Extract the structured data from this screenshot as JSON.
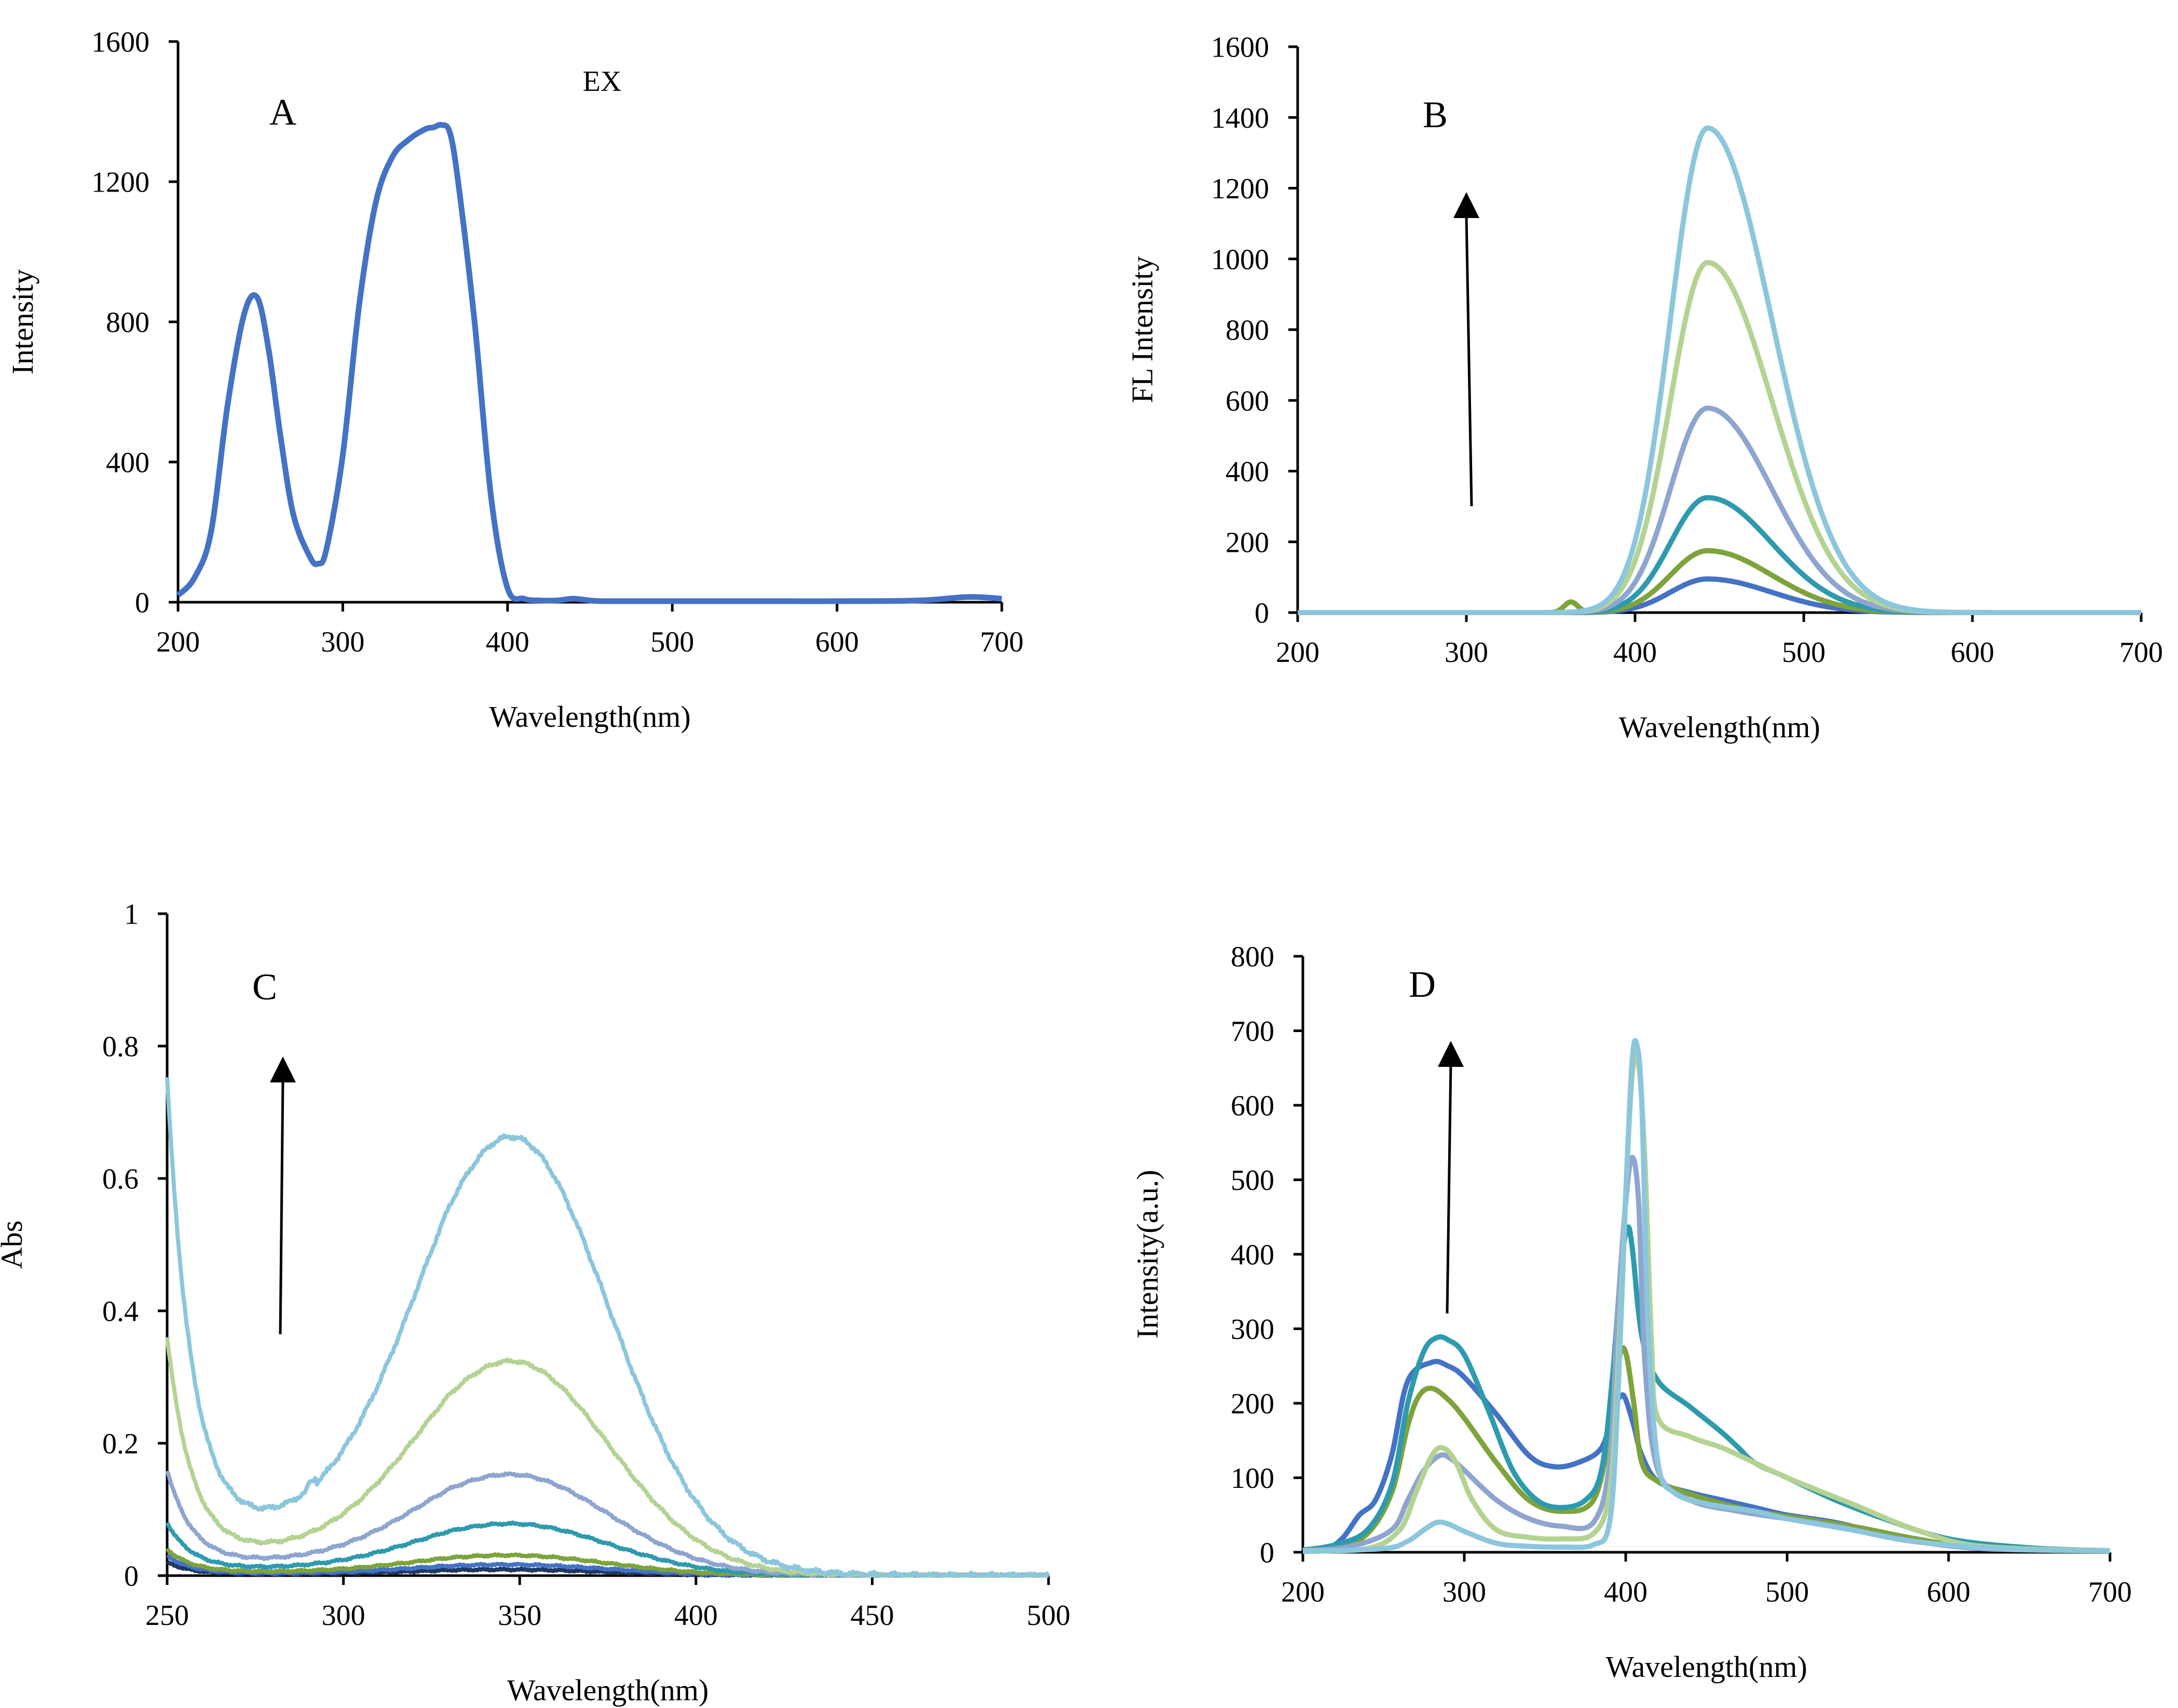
{
  "chart_data": [
    {
      "panel": "A",
      "type": "line",
      "panel_label": "A",
      "annotation": "EX",
      "xlabel": "Wavelength(nm)",
      "ylabel": "Intensity",
      "xlim": [
        200,
        700
      ],
      "ylim": [
        0,
        1600
      ],
      "xticks": [
        200,
        300,
        400,
        500,
        600,
        700
      ],
      "yticks": [
        0,
        400,
        800,
        1200,
        1600
      ],
      "colors": [
        "#4472C4"
      ],
      "series": [
        {
          "x": [
            200,
            210,
            220,
            230,
            240,
            248,
            255,
            262,
            270,
            280,
            285,
            290,
            300,
            310,
            320,
            330,
            340,
            350,
            355,
            360,
            365,
            370,
            380,
            390,
            400,
            410,
            420,
            430,
            440,
            450,
            460,
            500,
            550,
            600,
            650,
            680,
            700
          ],
          "y": [
            20,
            70,
            200,
            560,
            820,
            870,
            720,
            480,
            250,
            130,
            110,
            150,
            420,
            850,
            1140,
            1270,
            1320,
            1350,
            1355,
            1362,
            1340,
            1200,
            800,
            300,
            40,
            10,
            5,
            5,
            10,
            5,
            3,
            3,
            3,
            3,
            5,
            15,
            10
          ]
        }
      ]
    },
    {
      "panel": "B",
      "type": "line",
      "panel_label": "B",
      "xlabel": "Wavelength(nm)",
      "ylabel": "FL Intensity",
      "xlim": [
        200,
        700
      ],
      "ylim": [
        0,
        1600
      ],
      "xticks": [
        200,
        300,
        400,
        500,
        600,
        700
      ],
      "yticks": [
        0,
        200,
        400,
        600,
        800,
        1000,
        1200,
        1400,
        1600
      ],
      "arrow": "up",
      "colors": [
        "#4472C4",
        "#7DA33A",
        "#2E9AAE",
        "#8EA5CF",
        "#B4D393",
        "#8CC6DC"
      ],
      "peak_center": 443,
      "peaks": [
        95,
        175,
        325,
        578,
        990,
        1370
      ],
      "small_peak": {
        "x": 362,
        "y": 30
      }
    },
    {
      "panel": "C",
      "type": "line",
      "panel_label": "C",
      "xlabel": "Wavelength(nm)",
      "ylabel": "Abs",
      "xlim": [
        250,
        500
      ],
      "ylim": [
        0,
        1
      ],
      "xticks": [
        250,
        300,
        350,
        400,
        450,
        500
      ],
      "yticks": [
        0,
        0.2,
        0.4,
        0.6,
        0.8,
        1
      ],
      "ytick_labels": [
        "0",
        "0.2",
        "0.4",
        "0.6",
        "0.8",
        "1"
      ],
      "arrow": "up",
      "colors": [
        "#1F3864",
        "#4472C4",
        "#7DA33A",
        "#2E9AAE",
        "#8EA5CF",
        "#B4D393",
        "#8CC6DC"
      ],
      "peak_center": 349,
      "peaks": [
        0.008,
        0.015,
        0.028,
        0.073,
        0.142,
        0.305,
        0.625
      ],
      "start_values": [
        0.02,
        0.03,
        0.04,
        0.08,
        0.16,
        0.36,
        0.75
      ],
      "trough_values": [
        0.002,
        0.003,
        0.005,
        0.01,
        0.02,
        0.035,
        0.07
      ]
    },
    {
      "panel": "D",
      "type": "line",
      "panel_label": "D",
      "xlabel": "Wavelength(nm)",
      "ylabel": "Intensity(a.u.)",
      "xlim": [
        200,
        700
      ],
      "ylim": [
        0,
        800
      ],
      "xticks": [
        200,
        300,
        400,
        500,
        600,
        700
      ],
      "yticks": [
        0,
        100,
        200,
        300,
        400,
        500,
        600,
        700,
        800
      ],
      "arrow": "up",
      "series": [
        {
          "color": "#4472C4",
          "x": [
            200,
            215,
            225,
            235,
            245,
            255,
            265,
            280,
            290,
            300,
            320,
            340,
            355,
            370,
            385,
            392,
            397,
            400,
            405,
            410,
            420,
            440,
            460,
            480,
            500,
            530,
            560,
            600,
            650,
            700
          ],
          "y": [
            3,
            5,
            20,
            50,
            70,
            130,
            230,
            255,
            250,
            235,
            185,
            130,
            115,
            120,
            140,
            190,
            210,
            205,
            170,
            130,
            95,
            80,
            70,
            60,
            50,
            40,
            25,
            10,
            4,
            2
          ]
        },
        {
          "color": "#7DA33A",
          "x": [
            200,
            220,
            240,
            255,
            265,
            272,
            280,
            290,
            300,
            320,
            340,
            360,
            380,
            390,
            396,
            400,
            405,
            410,
            420,
            440,
            460,
            480,
            500,
            540,
            580,
            620,
            700
          ],
          "y": [
            2,
            5,
            25,
            80,
            170,
            210,
            220,
            205,
            180,
            120,
            70,
            55,
            70,
            160,
            260,
            268,
            200,
            120,
            95,
            78,
            65,
            55,
            48,
            35,
            18,
            6,
            2
          ]
        },
        {
          "color": "#2E9AAE",
          "x": [
            200,
            220,
            240,
            255,
            265,
            275,
            283,
            290,
            300,
            315,
            330,
            345,
            360,
            375,
            385,
            392,
            397,
            401,
            404,
            410,
            420,
            440,
            460,
            470,
            480,
            500,
            530,
            560,
            600,
            650,
            700
          ],
          "y": [
            3,
            10,
            30,
            90,
            200,
            270,
            288,
            285,
            265,
            190,
            110,
            70,
            60,
            70,
            110,
            240,
            380,
            435,
            410,
            290,
            230,
            195,
            160,
            140,
            120,
            100,
            70,
            45,
            18,
            6,
            2
          ]
        },
        {
          "color": "#8EA5CF",
          "x": [
            200,
            230,
            255,
            265,
            275,
            285,
            292,
            300,
            320,
            340,
            360,
            380,
            390,
            395,
            400,
            404,
            408,
            412,
            420,
            440,
            470,
            500,
            530,
            570,
            620,
            700
          ],
          "y": [
            2,
            8,
            30,
            70,
            110,
            130,
            125,
            110,
            70,
            45,
            35,
            40,
            120,
            320,
            470,
            530,
            470,
            250,
            110,
            70,
            55,
            45,
            35,
            18,
            5,
            2
          ]
        },
        {
          "color": "#B4D393",
          "x": [
            200,
            240,
            260,
            270,
            280,
            287,
            295,
            305,
            320,
            340,
            360,
            380,
            390,
            395,
            400,
            404,
            408,
            412,
            416,
            420,
            440,
            460,
            480,
            500,
            540,
            580,
            620,
            700
          ],
          "y": [
            2,
            5,
            30,
            80,
            130,
            140,
            120,
            70,
            30,
            20,
            18,
            25,
            80,
            240,
            480,
            640,
            655,
            520,
            280,
            180,
            155,
            140,
            120,
            100,
            65,
            30,
            8,
            2
          ]
        },
        {
          "color": "#8CC6DC",
          "x": [
            200,
            250,
            265,
            275,
            283,
            290,
            300,
            320,
            340,
            360,
            380,
            390,
            395,
            400,
            404,
            407,
            410,
            414,
            420,
            430,
            450,
            480,
            500,
            540,
            580,
            640,
            700
          ],
          "y": [
            1,
            5,
            15,
            30,
            40,
            38,
            28,
            12,
            8,
            7,
            10,
            40,
            200,
            480,
            660,
            680,
            600,
            300,
            120,
            80,
            65,
            55,
            45,
            30,
            14,
            4,
            2
          ]
        }
      ]
    }
  ]
}
